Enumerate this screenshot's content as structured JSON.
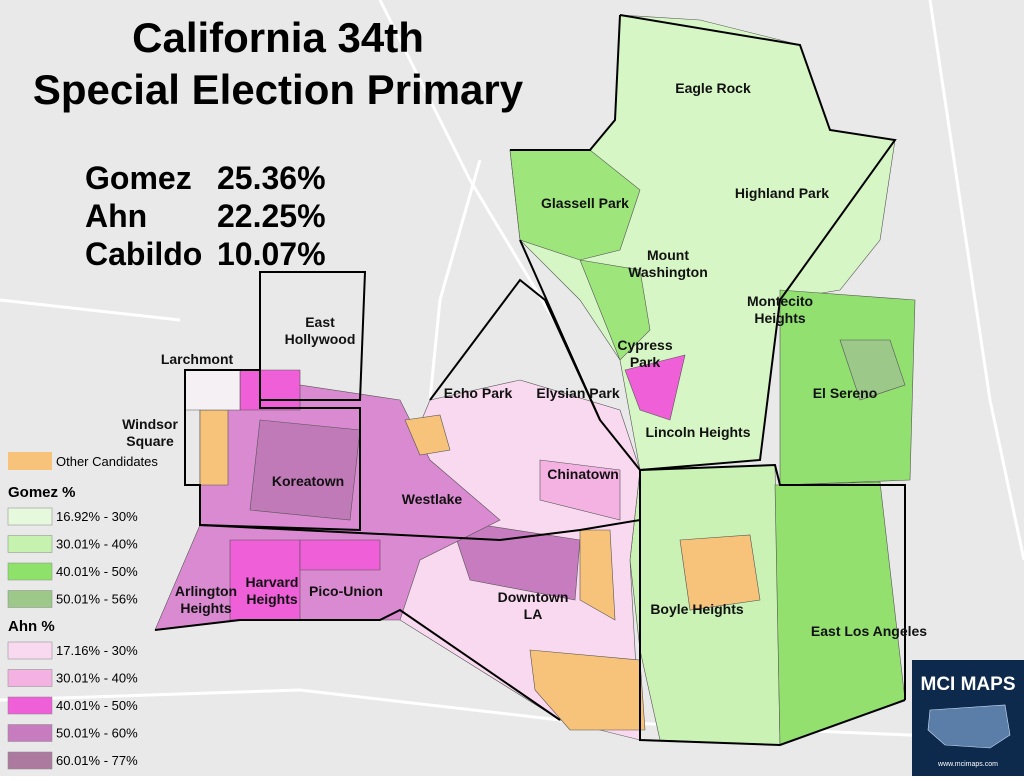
{
  "title_lines": [
    "California 34th",
    "Special Election Primary"
  ],
  "results": [
    {
      "candidate": "Gomez",
      "share": "25.36%"
    },
    {
      "candidate": "Ahn",
      "share": "22.25%"
    },
    {
      "candidate": "Cabildo",
      "share": "10.07%"
    }
  ],
  "legend": {
    "other": {
      "label": "Other Candidates",
      "color": "#f7c27a"
    },
    "groups": [
      {
        "title": "Gomez %",
        "items": [
          {
            "label": "16.92% - 30%",
            "color": "#e6f9dc"
          },
          {
            "label": "30.01% - 40%",
            "color": "#c6f2b0"
          },
          {
            "label": "40.01% - 50%",
            "color": "#8ee26a"
          },
          {
            "label": "50.01% - 56%",
            "color": "#9cc98a"
          }
        ]
      },
      {
        "title": "Ahn %",
        "items": [
          {
            "label": "17.16% - 30%",
            "color": "#f9d9ef"
          },
          {
            "label": "30.01% - 40%",
            "color": "#f4b2e3"
          },
          {
            "label": "40.01% - 50%",
            "color": "#ee5fd8"
          },
          {
            "label": "50.01% - 60%",
            "color": "#c77cc0"
          },
          {
            "label": "60.01% - 77%",
            "color": "#ac7a9f"
          }
        ]
      }
    ]
  },
  "neighborhoods": [
    {
      "lines": [
        "Eagle Rock"
      ]
    },
    {
      "lines": [
        "Glassell Park"
      ]
    },
    {
      "lines": [
        "Highland Park"
      ]
    },
    {
      "lines": [
        "Mount",
        "Washington"
      ]
    },
    {
      "lines": [
        "Montecito",
        "Heights"
      ]
    },
    {
      "lines": [
        "Cypress",
        "Park"
      ]
    },
    {
      "lines": [
        "El Sereno"
      ]
    },
    {
      "lines": [
        "Echo Park"
      ]
    },
    {
      "lines": [
        "Elysian Park"
      ]
    },
    {
      "lines": [
        "Lincoln Heights"
      ]
    },
    {
      "lines": [
        "Chinatown"
      ]
    },
    {
      "lines": [
        "Westlake"
      ]
    },
    {
      "lines": [
        "Koreatown"
      ]
    },
    {
      "lines": [
        "East",
        "Hollywood"
      ]
    },
    {
      "lines": [
        "Larchmont"
      ]
    },
    {
      "lines": [
        "Windsor",
        "Square"
      ]
    },
    {
      "lines": [
        "Boyle Heights"
      ]
    },
    {
      "lines": [
        "East Los Angeles"
      ]
    },
    {
      "lines": [
        "Downtown",
        "LA"
      ]
    },
    {
      "lines": [
        "Pico-Union"
      ]
    },
    {
      "lines": [
        "Harvard",
        "Heights"
      ]
    },
    {
      "lines": [
        "Arlington",
        "Heights"
      ]
    }
  ],
  "logo": {
    "title": "MCI MAPS",
    "url": "www.mcimaps.com"
  }
}
